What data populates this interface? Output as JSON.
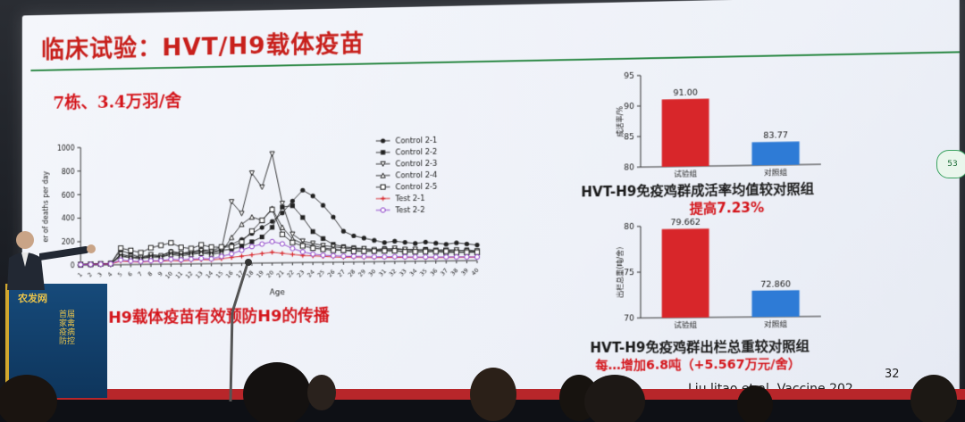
{
  "slide": {
    "title": "临床试验：HVT/H9载体疫苗",
    "subhead": "7栋、3.4万羽/舍",
    "banner_caption": "H9载体疫苗有效预防H9的传播",
    "survival_caption": "HVT-H9免疫鸡群成活率均值较对照组",
    "survival_caption_2": "提高7.23%",
    "weight_caption": "HVT-H9免疫鸡群出栏总重较对照组",
    "weight_caption_2": "每…增加6.8吨（+5.567万元/舍）",
    "page_number": "32",
    "citation": "Liu litao   et al. Vaccine 202",
    "badge": "53"
  },
  "banner": {
    "logo": "农发网",
    "text": "首届家禽疫病防控"
  },
  "chart_data": [
    {
      "type": "line",
      "ylabel": "er of deaths per day",
      "xlabel": "Age",
      "x": [
        1,
        2,
        3,
        4,
        5,
        6,
        7,
        8,
        9,
        10,
        11,
        12,
        13,
        14,
        15,
        16,
        17,
        18,
        19,
        20,
        21,
        22,
        23,
        24,
        25,
        26,
        27,
        28,
        29,
        30,
        31,
        32,
        33,
        34,
        35,
        36,
        37,
        38,
        39,
        40
      ],
      "ylim": [
        0,
        1000
      ],
      "yticks": [
        "0",
        "200",
        "400",
        "600",
        "800",
        "1000"
      ],
      "legend_position": "right",
      "series": [
        {
          "name": "Control 2-1",
          "marker": "circle-filled",
          "color": "#222222",
          "values": [
            5,
            8,
            10,
            12,
            120,
            90,
            60,
            80,
            70,
            110,
            90,
            100,
            120,
            110,
            140,
            160,
            200,
            250,
            300,
            350,
            420,
            520,
            610,
            560,
            480,
            380,
            260,
            220,
            200,
            180,
            160,
            170,
            160,
            150,
            160,
            150,
            140,
            150,
            140,
            130
          ]
        },
        {
          "name": "Control 2-2",
          "marker": "square-filled",
          "color": "#222222",
          "values": [
            5,
            6,
            8,
            10,
            80,
            60,
            50,
            70,
            60,
            90,
            80,
            90,
            100,
            90,
            110,
            120,
            140,
            180,
            220,
            300,
            470,
            480,
            380,
            260,
            200,
            150,
            130,
            120,
            110,
            100,
            110,
            100,
            100,
            90,
            100,
            90,
            90,
            80,
            90,
            80
          ]
        },
        {
          "name": "Control 2-3",
          "marker": "triangle-down",
          "color": "#222222",
          "values": [
            4,
            6,
            8,
            10,
            90,
            70,
            60,
            80,
            70,
            100,
            90,
            100,
            110,
            100,
            120,
            520,
            420,
            760,
            640,
            920,
            500,
            240,
            180,
            160,
            140,
            130,
            120,
            110,
            110,
            100,
            100,
            110,
            100,
            100,
            90,
            90,
            90,
            90,
            80,
            80
          ]
        },
        {
          "name": "Control 2-4",
          "marker": "triangle-up",
          "color": "#222222",
          "values": [
            4,
            6,
            8,
            10,
            70,
            60,
            50,
            60,
            60,
            80,
            70,
            80,
            90,
            80,
            90,
            220,
            330,
            390,
            360,
            460,
            300,
            200,
            160,
            140,
            120,
            110,
            100,
            100,
            90,
            90,
            90,
            90,
            80,
            80,
            80,
            80,
            70,
            70,
            70,
            70
          ]
        },
        {
          "name": "Control 2-5",
          "marker": "square-open",
          "color": "#222222",
          "values": [
            4,
            6,
            8,
            10,
            140,
            120,
            100,
            140,
            160,
            180,
            140,
            130,
            160,
            140,
            140,
            140,
            180,
            270,
            360,
            450,
            240,
            170,
            140,
            120,
            110,
            100,
            100,
            90,
            90,
            90,
            90,
            90,
            80,
            80,
            80,
            80,
            80,
            70,
            70,
            70
          ]
        },
        {
          "name": "Test 2-1",
          "marker": "plus",
          "color": "#d8262a",
          "values": [
            4,
            5,
            6,
            8,
            30,
            25,
            20,
            25,
            25,
            30,
            25,
            30,
            35,
            30,
            40,
            50,
            60,
            70,
            80,
            90,
            80,
            70,
            60,
            55,
            50,
            45,
            40,
            40,
            38,
            36,
            35,
            34,
            33,
            32,
            31,
            30,
            30,
            30,
            29,
            28
          ]
        },
        {
          "name": "Test 2-2",
          "marker": "circle-open",
          "color": "#8a3cc7",
          "values": [
            4,
            5,
            6,
            8,
            40,
            30,
            25,
            30,
            30,
            40,
            35,
            40,
            45,
            40,
            60,
            80,
            110,
            140,
            160,
            180,
            160,
            120,
            90,
            70,
            60,
            55,
            50,
            48,
            45,
            42,
            40,
            40,
            38,
            36,
            35,
            34,
            33,
            32,
            31,
            30
          ]
        }
      ]
    },
    {
      "type": "bar",
      "ylabel": "成活率/%",
      "categories": [
        "试验组",
        "对照组"
      ],
      "values": [
        91.0,
        83.77
      ],
      "value_labels": [
        "91.00",
        "83.77"
      ],
      "colors": [
        "#d8262a",
        "#2e7bd6"
      ],
      "ylim": [
        80,
        95
      ],
      "yticks": [
        "80",
        "85",
        "90",
        "95"
      ]
    },
    {
      "type": "bar",
      "ylabel": "出栏总重(吨/舍)",
      "categories": [
        "试验组",
        "对照组"
      ],
      "values": [
        79.662,
        72.86
      ],
      "value_labels": [
        "79.662",
        "72.860"
      ],
      "colors": [
        "#d8262a",
        "#2e7bd6"
      ],
      "ylim": [
        70,
        80
      ],
      "yticks": [
        "70",
        "75",
        "80"
      ]
    }
  ]
}
